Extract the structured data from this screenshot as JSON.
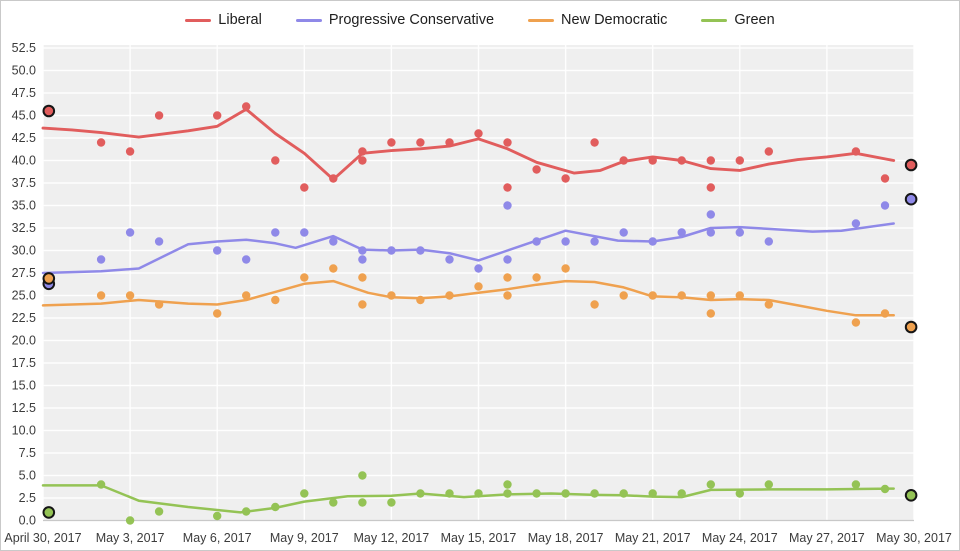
{
  "chart_data": {
    "type": "scatter",
    "title": "",
    "description": "Polling trend lines and individual poll results for four parties, April 30 to May 30, 2017, with circled previous/final election result markers at each end",
    "grid": true,
    "legend_position": "top",
    "plot_background": "#efefef",
    "gridline_color": "#ffffff",
    "axis_line_color": "#c8c8c8",
    "tick_label_color": "#3c3c3c",
    "x_axis": {
      "range_days": [
        0,
        30
      ],
      "tick_days": [
        0,
        3,
        6,
        9,
        12,
        15,
        18,
        21,
        24,
        27,
        30
      ],
      "tick_labels": [
        "April 30, 2017",
        "May 3, 2017",
        "May 6, 2017",
        "May 9, 2017",
        "May 12, 2017",
        "May 15, 2017",
        "May 18, 2017",
        "May 21, 2017",
        "May 24, 2017",
        "May 27, 2017",
        "May 30, 2017"
      ]
    },
    "y_axis": {
      "min": 0,
      "max": 52.5,
      "step": 2.5,
      "tick_labels": [
        "0.0",
        "2.5",
        "5.0",
        "7.5",
        "10.0",
        "12.5",
        "15.0",
        "17.5",
        "20.0",
        "22.5",
        "25.0",
        "27.5",
        "30.0",
        "32.5",
        "35.0",
        "37.5",
        "40.0",
        "42.5",
        "45.0",
        "47.5",
        "50.0",
        "52.5"
      ]
    },
    "series": [
      {
        "name": "Liberal",
        "key": "liberal",
        "color": "#e15d5d",
        "trend": [
          [
            0,
            43.6
          ],
          [
            1,
            43.4
          ],
          [
            2,
            43.1
          ],
          [
            3.3,
            42.6
          ],
          [
            5,
            43.3
          ],
          [
            6,
            43.8
          ],
          [
            7,
            45.7
          ],
          [
            8,
            43.0
          ],
          [
            9,
            40.8
          ],
          [
            10,
            37.9
          ],
          [
            11,
            40.8
          ],
          [
            12,
            41.1
          ],
          [
            13,
            41.3
          ],
          [
            14,
            41.6
          ],
          [
            15,
            42.4
          ],
          [
            16,
            41.3
          ],
          [
            17,
            39.8
          ],
          [
            18.3,
            38.6
          ],
          [
            19.2,
            38.9
          ],
          [
            20,
            39.9
          ],
          [
            21,
            40.4
          ],
          [
            22,
            40.0
          ],
          [
            23,
            39.1
          ],
          [
            24,
            38.9
          ],
          [
            25,
            39.6
          ],
          [
            26,
            40.1
          ],
          [
            27,
            40.4
          ],
          [
            28,
            40.8
          ],
          [
            29.3,
            40.0
          ]
        ],
        "polls": [
          [
            2,
            42
          ],
          [
            3,
            41
          ],
          [
            4,
            45
          ],
          [
            6,
            45
          ],
          [
            7,
            46
          ],
          [
            8,
            40
          ],
          [
            9,
            37
          ],
          [
            10,
            38
          ],
          [
            11,
            41
          ],
          [
            11,
            40
          ],
          [
            12,
            42
          ],
          [
            13,
            42
          ],
          [
            14,
            42
          ],
          [
            15,
            43
          ],
          [
            16,
            42
          ],
          [
            16,
            37
          ],
          [
            17,
            39
          ],
          [
            18,
            38
          ],
          [
            19,
            42
          ],
          [
            20,
            40
          ],
          [
            21,
            40
          ],
          [
            22,
            40
          ],
          [
            23,
            40
          ],
          [
            23,
            37
          ],
          [
            24,
            40
          ],
          [
            25,
            41
          ],
          [
            28,
            41
          ],
          [
            29,
            38
          ]
        ],
        "election_markers": [
          [
            0.2,
            45.5
          ],
          [
            29.9,
            39.5
          ]
        ]
      },
      {
        "name": "Progressive Conservative",
        "key": "progressive-conservative",
        "color": "#8f89e8",
        "trend": [
          [
            0,
            27.5
          ],
          [
            2,
            27.7
          ],
          [
            3.3,
            28.0
          ],
          [
            5,
            30.7
          ],
          [
            6,
            31.0
          ],
          [
            7,
            31.2
          ],
          [
            8,
            30.8
          ],
          [
            8.7,
            30.3
          ],
          [
            10,
            31.6
          ],
          [
            11,
            30.1
          ],
          [
            12,
            30.0
          ],
          [
            13,
            30.1
          ],
          [
            14,
            29.7
          ],
          [
            15,
            28.9
          ],
          [
            16,
            30.0
          ],
          [
            17,
            31.1
          ],
          [
            18,
            32.2
          ],
          [
            19.8,
            31.1
          ],
          [
            21,
            31.0
          ],
          [
            22,
            31.5
          ],
          [
            23,
            32.5
          ],
          [
            24,
            32.6
          ],
          [
            25,
            32.4
          ],
          [
            26.5,
            32.1
          ],
          [
            27.5,
            32.2
          ],
          [
            29.3,
            33.0
          ]
        ],
        "polls": [
          [
            2,
            29
          ],
          [
            3,
            32
          ],
          [
            4,
            31
          ],
          [
            6,
            30
          ],
          [
            7,
            29
          ],
          [
            8,
            32
          ],
          [
            9,
            32
          ],
          [
            10,
            31
          ],
          [
            11,
            30
          ],
          [
            11,
            29
          ],
          [
            12,
            30
          ],
          [
            13,
            30
          ],
          [
            14,
            29
          ],
          [
            15,
            28
          ],
          [
            16,
            35
          ],
          [
            16,
            29
          ],
          [
            17,
            31
          ],
          [
            18,
            31
          ],
          [
            19,
            31
          ],
          [
            20,
            32
          ],
          [
            21,
            31
          ],
          [
            22,
            32
          ],
          [
            23,
            34
          ],
          [
            23,
            32
          ],
          [
            24,
            32
          ],
          [
            25,
            31
          ],
          [
            28,
            33
          ],
          [
            29,
            35
          ]
        ],
        "election_markers": [
          [
            0.2,
            26.3
          ],
          [
            29.9,
            35.7
          ]
        ]
      },
      {
        "name": "New Democratic",
        "key": "new-democratic",
        "color": "#efa14f",
        "trend": [
          [
            0,
            23.9
          ],
          [
            2,
            24.1
          ],
          [
            3.3,
            24.5
          ],
          [
            5,
            24.1
          ],
          [
            6,
            24.0
          ],
          [
            7,
            24.5
          ],
          [
            8,
            25.4
          ],
          [
            9,
            26.3
          ],
          [
            10,
            26.6
          ],
          [
            11.2,
            25.3
          ],
          [
            12,
            24.8
          ],
          [
            13,
            24.7
          ],
          [
            14,
            24.9
          ],
          [
            15,
            25.3
          ],
          [
            16,
            25.7
          ],
          [
            17,
            26.2
          ],
          [
            18,
            26.6
          ],
          [
            19,
            26.5
          ],
          [
            20,
            25.9
          ],
          [
            21,
            24.9
          ],
          [
            22,
            24.8
          ],
          [
            23,
            24.5
          ],
          [
            24,
            24.6
          ],
          [
            25,
            24.5
          ],
          [
            26,
            23.9
          ],
          [
            27,
            23.3
          ],
          [
            28,
            22.8
          ],
          [
            29.3,
            22.8
          ]
        ],
        "polls": [
          [
            2,
            25
          ],
          [
            3,
            25
          ],
          [
            4,
            24
          ],
          [
            6,
            23
          ],
          [
            7,
            25
          ],
          [
            8,
            24.5
          ],
          [
            9,
            27
          ],
          [
            10,
            28
          ],
          [
            11,
            27
          ],
          [
            11,
            24
          ],
          [
            12,
            25
          ],
          [
            13,
            24.5
          ],
          [
            14,
            25
          ],
          [
            15,
            26
          ],
          [
            16,
            27
          ],
          [
            16,
            25
          ],
          [
            17,
            27
          ],
          [
            18,
            28
          ],
          [
            19,
            24
          ],
          [
            20,
            25
          ],
          [
            21,
            25
          ],
          [
            22,
            25
          ],
          [
            23,
            25
          ],
          [
            23,
            23
          ],
          [
            24,
            25
          ],
          [
            25,
            24
          ],
          [
            28,
            22
          ],
          [
            29,
            23
          ]
        ],
        "election_markers": [
          [
            0.2,
            26.9
          ],
          [
            29.9,
            21.5
          ]
        ]
      },
      {
        "name": "Green",
        "key": "green",
        "color": "#94c355",
        "trend": [
          [
            0,
            3.9
          ],
          [
            2,
            3.9
          ],
          [
            3.3,
            2.2
          ],
          [
            5,
            1.5
          ],
          [
            6.8,
            0.9
          ],
          [
            8,
            1.4
          ],
          [
            9,
            2.1
          ],
          [
            10.5,
            2.7
          ],
          [
            12,
            2.75
          ],
          [
            13,
            3.0
          ],
          [
            14.5,
            2.6
          ],
          [
            16,
            2.9
          ],
          [
            17.5,
            3.0
          ],
          [
            19,
            2.85
          ],
          [
            20,
            2.8
          ],
          [
            21,
            2.65
          ],
          [
            22,
            2.6
          ],
          [
            23,
            3.4
          ],
          [
            25,
            3.45
          ],
          [
            27,
            3.45
          ],
          [
            28,
            3.5
          ],
          [
            29.3,
            3.55
          ]
        ],
        "polls": [
          [
            2,
            4
          ],
          [
            3,
            0
          ],
          [
            4,
            1
          ],
          [
            6,
            0.5
          ],
          [
            7,
            1
          ],
          [
            8,
            1.5
          ],
          [
            9,
            3
          ],
          [
            10,
            2
          ],
          [
            11,
            5
          ],
          [
            11,
            2
          ],
          [
            12,
            2
          ],
          [
            13,
            3
          ],
          [
            14,
            3
          ],
          [
            15,
            3
          ],
          [
            16,
            4
          ],
          [
            16,
            3
          ],
          [
            17,
            3
          ],
          [
            18,
            3
          ],
          [
            19,
            3
          ],
          [
            20,
            3
          ],
          [
            21,
            3
          ],
          [
            22,
            3
          ],
          [
            23,
            4
          ],
          [
            24,
            3
          ],
          [
            25,
            4
          ],
          [
            28,
            4
          ],
          [
            29,
            3.5
          ]
        ],
        "election_markers": [
          [
            0.2,
            0.9
          ],
          [
            29.9,
            2.8
          ]
        ]
      }
    ]
  }
}
